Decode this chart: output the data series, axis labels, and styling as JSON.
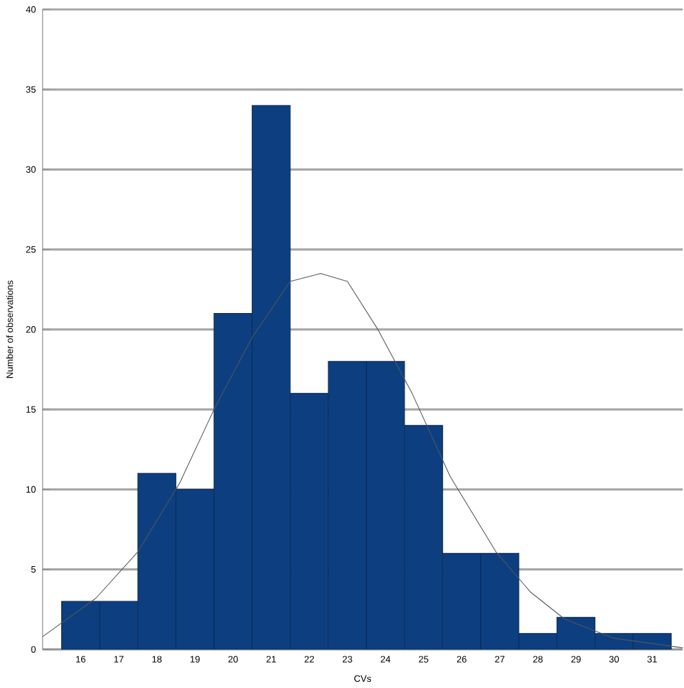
{
  "chart_data": {
    "type": "bar",
    "xlabel": "CVs",
    "ylabel": "Number of observations",
    "x": [
      16,
      17,
      18,
      19,
      20,
      21,
      22,
      23,
      24,
      25,
      26,
      27,
      28,
      29,
      30,
      31
    ],
    "values": [
      3,
      3,
      11,
      10,
      21,
      34,
      16,
      18,
      18,
      14,
      6,
      6,
      1,
      2,
      1,
      1
    ],
    "color": "#0d3f80",
    "series": [
      {
        "name": null,
        "type": "line",
        "color": "#555555",
        "x": [
          15,
          16.4,
          17.5,
          18.6,
          19.5,
          20.5,
          21.5,
          22.3,
          23,
          23.8,
          24.7,
          25.7,
          26.9,
          27.8,
          28.7,
          30,
          31.8
        ],
        "values": [
          0.8,
          3.2,
          6.1,
          10.4,
          15,
          19.5,
          23,
          23.5,
          23,
          20,
          16,
          10.8,
          6.1,
          3.6,
          1.9,
          0.7,
          0.1
        ]
      }
    ],
    "xlim": [
      15,
      31.8
    ],
    "xticks": [
      16,
      17,
      18,
      19,
      20,
      21,
      22,
      23,
      24,
      25,
      26,
      27,
      28,
      29,
      30,
      31
    ],
    "ylim": [
      0,
      40
    ],
    "yticks": [
      0,
      5,
      10,
      15,
      20,
      25,
      30,
      35,
      40
    ],
    "grid": "y"
  }
}
